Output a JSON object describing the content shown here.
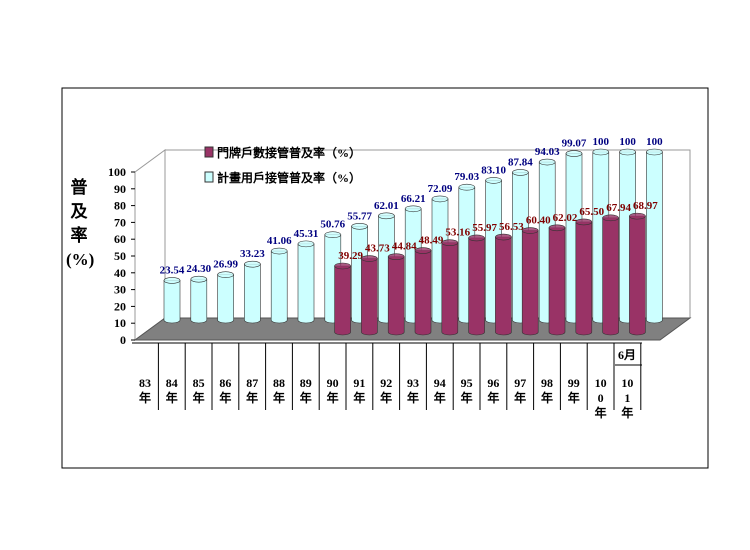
{
  "chart_data": {
    "type": "bar3d",
    "y_axis_label": "普及率(%)",
    "categories": [
      "83年",
      "84年",
      "85年",
      "86年",
      "87年",
      "88年",
      "89年",
      "90年",
      "91年",
      "92年",
      "93年",
      "94年",
      "95年",
      "96年",
      "97年",
      "98年",
      "99年",
      "100年",
      "101年"
    ],
    "annotation": "6月",
    "ylim": [
      0,
      100
    ],
    "yticks": [
      0,
      10,
      20,
      30,
      40,
      50,
      60,
      70,
      80,
      90,
      100
    ],
    "series": [
      {
        "name": "計畫用戶接管普及率（%）",
        "color": "#ccffff",
        "label_color": "#000080",
        "values": [
          23.54,
          24.3,
          26.99,
          33.23,
          41.06,
          45.31,
          50.76,
          55.77,
          62.01,
          66.21,
          72.09,
          79.03,
          83.1,
          87.84,
          94.03,
          99.07,
          100,
          100,
          100
        ],
        "value_labels": [
          "23.54",
          "24.30",
          "26.99",
          "33.23",
          "41.06",
          "45.31",
          "50.76",
          "55.77",
          "62.01",
          "66.21",
          "72.09",
          "79.03",
          "83.10",
          "87.84",
          "94.03",
          "99.07",
          "100",
          "100",
          "100"
        ]
      },
      {
        "name": "門牌戶數接管普及率（%）",
        "color": "#993366",
        "label_color": "#800000",
        "values": [
          null,
          null,
          null,
          null,
          null,
          null,
          null,
          39.29,
          43.73,
          44.84,
          48.49,
          53.16,
          55.97,
          56.53,
          60.4,
          62.02,
          65.5,
          67.94,
          68.97
        ],
        "value_labels": [
          null,
          null,
          null,
          null,
          null,
          null,
          null,
          "39.29",
          "43.73",
          "44.84",
          "48.49",
          "53.16",
          "55.97",
          "56.53",
          "60.40",
          "62.02",
          "65.50",
          "67.94",
          "68.97"
        ]
      }
    ]
  }
}
